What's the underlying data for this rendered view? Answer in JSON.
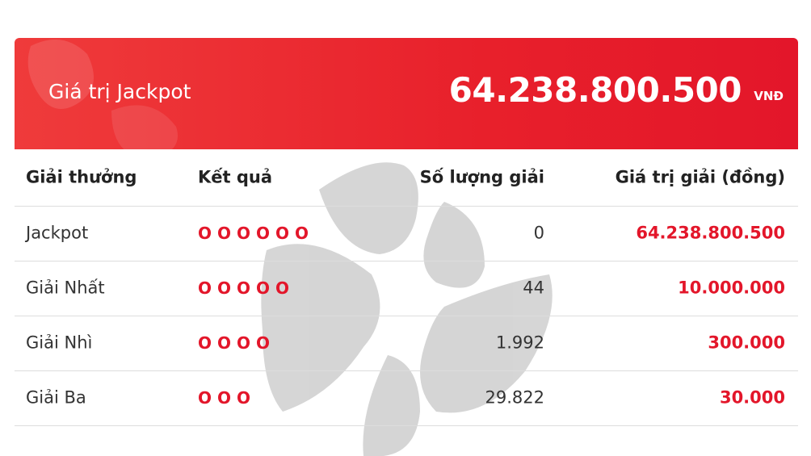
{
  "header": {
    "title": "Giá trị Jackpot",
    "amount": "64.238.800.500",
    "unit": "VNĐ"
  },
  "table": {
    "columns": [
      "Giải thưởng",
      "Kết quả",
      "Số lượng giải",
      "Giá trị giải (đồng)"
    ],
    "rows": [
      [
        "Jackpot",
        "OOOOOO",
        "0",
        "64.238.800.500"
      ],
      [
        "Giải Nhất",
        "OOOOO",
        "44",
        "10.000.000"
      ],
      [
        "Giải Nhì",
        "OOOO",
        "1.992",
        "300.000"
      ],
      [
        "Giải Ba",
        "OOO",
        "29.822",
        "30.000"
      ]
    ]
  }
}
